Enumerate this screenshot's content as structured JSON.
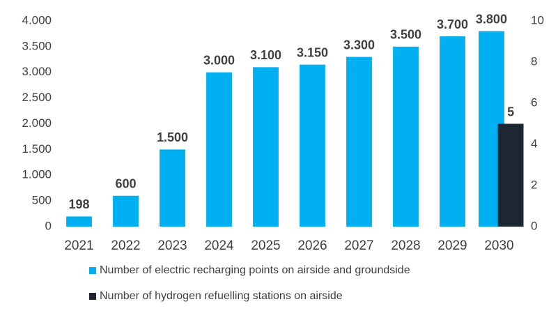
{
  "chart_data": {
    "type": "bar",
    "categories": [
      "2021",
      "2022",
      "2023",
      "2024",
      "2025",
      "2026",
      "2027",
      "2028",
      "2029",
      "2030"
    ],
    "series": [
      {
        "name": "Number of electric recharging points on airside and groundside",
        "color": "#00b0f0",
        "values": [
          198,
          600,
          1500,
          3000,
          3100,
          3150,
          3300,
          3500,
          3700,
          3800
        ],
        "value_labels": [
          "198",
          "600",
          "1.500",
          "3.000",
          "3.100",
          "3.150",
          "3.300",
          "3.500",
          "3.700",
          "3.800"
        ]
      },
      {
        "name": "Number of hydrogen refuelling stations on airside",
        "color": "#1c2733",
        "axis": "y2",
        "values": [
          null,
          null,
          null,
          null,
          null,
          null,
          null,
          null,
          null,
          5
        ]
      }
    ],
    "ylim": [
      0,
      4000
    ],
    "yticks": [
      0,
      {
        "value": 500,
        "label": "500"
      },
      {
        "value": 1000,
        "label": "1.000"
      },
      {
        "value": 1500,
        "label": "1.500"
      },
      {
        "value": 2000,
        "label": "2.000"
      },
      {
        "value": 2500,
        "label": "2.500"
      },
      {
        "value": 3000,
        "label": "3.000"
      },
      {
        "value": 3500,
        "label": "3.500"
      },
      {
        "value": 4000,
        "label": "4.000"
      }
    ],
    "y2lim": [
      0,
      10
    ],
    "y2ticks": [
      0,
      2,
      4,
      6,
      8,
      10
    ],
    "grid": false
  }
}
